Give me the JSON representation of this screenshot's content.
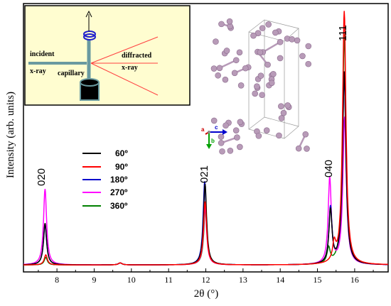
{
  "chart_data": {
    "type": "line",
    "title": "",
    "xlabel": "2θ (°)",
    "ylabel": "Intensity (arb. units)",
    "xlim": [
      7.1,
      16.9
    ],
    "ylim": [
      0,
      1.03
    ],
    "xticks": [
      "8",
      "9",
      "10",
      "11",
      "12",
      "13",
      "14",
      "15",
      "16"
    ],
    "grid": false,
    "legend_position": "center-left",
    "series": [
      {
        "name": "60º",
        "color": "#000000",
        "peaks": [
          {
            "x": 7.68,
            "h": 0.165,
            "w": 0.05
          },
          {
            "x": 9.7,
            "h": 0.008,
            "w": 0.06
          },
          {
            "x": 11.98,
            "h": 0.32,
            "w": 0.05
          },
          {
            "x": 15.35,
            "h": 0.21,
            "w": 0.05
          },
          {
            "x": 15.72,
            "h": 0.76,
            "w": 0.055
          }
        ]
      },
      {
        "name": "90º",
        "color": "#ff0000",
        "peaks": [
          {
            "x": 7.7,
            "h": 0.04,
            "w": 0.05
          },
          {
            "x": 9.7,
            "h": 0.008,
            "w": 0.06
          },
          {
            "x": 11.98,
            "h": 0.25,
            "w": 0.05
          },
          {
            "x": 15.45,
            "h": 0.07,
            "w": 0.05
          },
          {
            "x": 15.72,
            "h": 1.0,
            "w": 0.055
          }
        ]
      },
      {
        "name": "180º",
        "color": "#0000cc",
        "peaks": [
          {
            "x": 7.68,
            "h": 0.16,
            "w": 0.05
          },
          {
            "x": 9.7,
            "h": 0.008,
            "w": 0.06
          },
          {
            "x": 11.97,
            "h": 0.33,
            "w": 0.05
          },
          {
            "x": 15.35,
            "h": 0.22,
            "w": 0.05
          },
          {
            "x": 15.72,
            "h": 0.74,
            "w": 0.055
          }
        ]
      },
      {
        "name": "270º",
        "color": "#ff00ff",
        "peaks": [
          {
            "x": 7.68,
            "h": 0.3,
            "w": 0.05
          },
          {
            "x": 9.7,
            "h": 0.008,
            "w": 0.06
          },
          {
            "x": 11.98,
            "h": 0.23,
            "w": 0.05
          },
          {
            "x": 15.33,
            "h": 0.34,
            "w": 0.05
          },
          {
            "x": 15.73,
            "h": 0.58,
            "w": 0.055
          }
        ]
      },
      {
        "name": "360º",
        "color": "#008000",
        "peaks": [
          {
            "x": 7.7,
            "h": 0.03,
            "w": 0.05
          },
          {
            "x": 9.7,
            "h": 0.008,
            "w": 0.06
          },
          {
            "x": 11.99,
            "h": 0.24,
            "w": 0.05
          },
          {
            "x": 15.3,
            "h": 0.06,
            "w": 0.05
          },
          {
            "x": 15.72,
            "h": 0.91,
            "w": 0.055
          }
        ]
      }
    ],
    "annotations": [
      {
        "text": "020",
        "x": 7.65
      },
      {
        "text": "021",
        "x": 11.95
      },
      {
        "text": "040",
        "x": 15.3
      },
      {
        "text": "111",
        "x": 15.72
      }
    ],
    "inset": {
      "labels": {
        "incident": "incident",
        "xray": "x-ray",
        "diffracted": "diffracted",
        "diffracted_xray": "x-ray",
        "capillary": "capillary"
      },
      "colors": {
        "beam": "#ff4040",
        "frame": "#6a9aa0",
        "background": "#fffdd0"
      }
    },
    "axes_triad": {
      "a": "a",
      "b": "b",
      "c": "c",
      "colors": {
        "a": "#cc0000",
        "b": "#00a000",
        "c": "#0000cc"
      }
    }
  }
}
